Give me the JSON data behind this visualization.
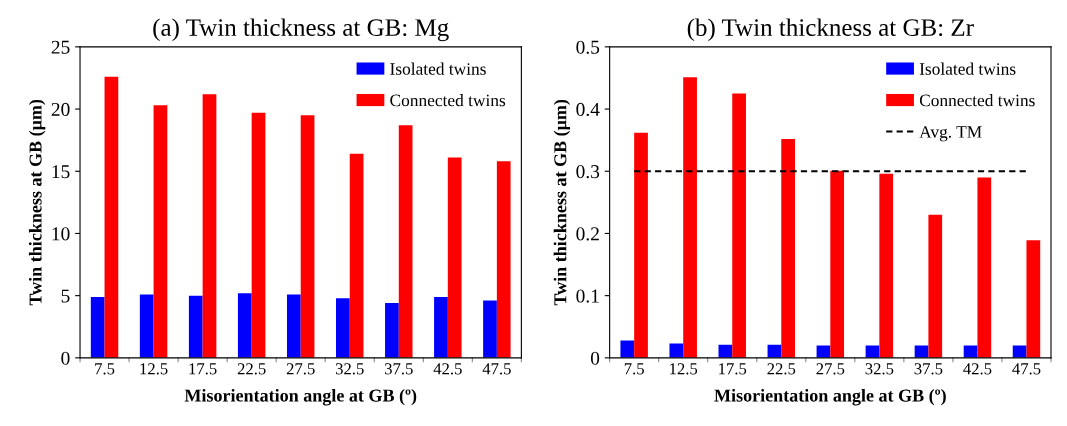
{
  "chart_data": [
    {
      "type": "bar",
      "title": "(a) Twin thickness at GB: Mg",
      "xlabel": "Misorientation angle at GB (º)",
      "ylabel": "Twin thickness at GB (μm)",
      "categories": [
        "7.5",
        "12.5",
        "17.5",
        "22.5",
        "27.5",
        "32.5",
        "37.5",
        "42.5",
        "47.5"
      ],
      "series": [
        {
          "name": "Isolated twins",
          "color": "#0000ff",
          "values": [
            4.9,
            5.1,
            5.0,
            5.2,
            5.1,
            4.8,
            4.4,
            4.9,
            4.6
          ]
        },
        {
          "name": "Connected twins",
          "color": "#ff0000",
          "values": [
            22.6,
            20.3,
            21.2,
            19.7,
            19.5,
            16.4,
            18.7,
            16.1,
            15.8
          ]
        }
      ],
      "ylim": [
        0,
        25
      ],
      "yticks": [
        0,
        5,
        10,
        15,
        20,
        25
      ],
      "grid": false,
      "legend": "top right"
    },
    {
      "type": "bar",
      "title": "(b) Twin thickness at GB: Zr",
      "xlabel": "Misorientation angle at GB (º)",
      "ylabel": "Twin thickness at GB (μm)",
      "categories": [
        "7.5",
        "12.5",
        "17.5",
        "22.5",
        "27.5",
        "32.5",
        "37.5",
        "42.5",
        "47.5"
      ],
      "series": [
        {
          "name": "Isolated twins",
          "color": "#0000ff",
          "values": [
            0.028,
            0.023,
            0.021,
            0.021,
            0.02,
            0.02,
            0.02,
            0.02,
            0.02
          ]
        },
        {
          "name": "Connected twins",
          "color": "#ff0000",
          "values": [
            0.362,
            0.451,
            0.425,
            0.352,
            0.301,
            0.296,
            0.23,
            0.29,
            0.189
          ]
        },
        {
          "name": "Avg. TM",
          "type": "line",
          "color": "#000000",
          "line_style": "dashed",
          "values": [
            0.3,
            0.3,
            0.3,
            0.3,
            0.3,
            0.3,
            0.3,
            0.3,
            0.3
          ]
        }
      ],
      "ylim": [
        0,
        0.5
      ],
      "yticks": [
        0,
        0.1,
        0.2,
        0.3,
        0.4,
        0.5
      ],
      "grid": false,
      "legend": "top right"
    }
  ]
}
